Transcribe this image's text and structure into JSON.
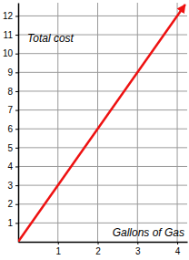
{
  "chart_data": {
    "type": "line",
    "x_label": "Gallons of Gas",
    "y_label": "Total cost",
    "x": [
      0,
      4.2
    ],
    "values": [
      0,
      12.6
    ],
    "color": "#ee1111",
    "marker": "arrow",
    "xlim": [
      0,
      4.25
    ],
    "ylim": [
      0,
      12.7
    ],
    "xticks": [
      1,
      2,
      3,
      4
    ],
    "yticks": [
      1,
      2,
      3,
      4,
      5,
      6,
      7,
      8,
      9,
      10,
      11,
      12
    ],
    "grid": true
  }
}
